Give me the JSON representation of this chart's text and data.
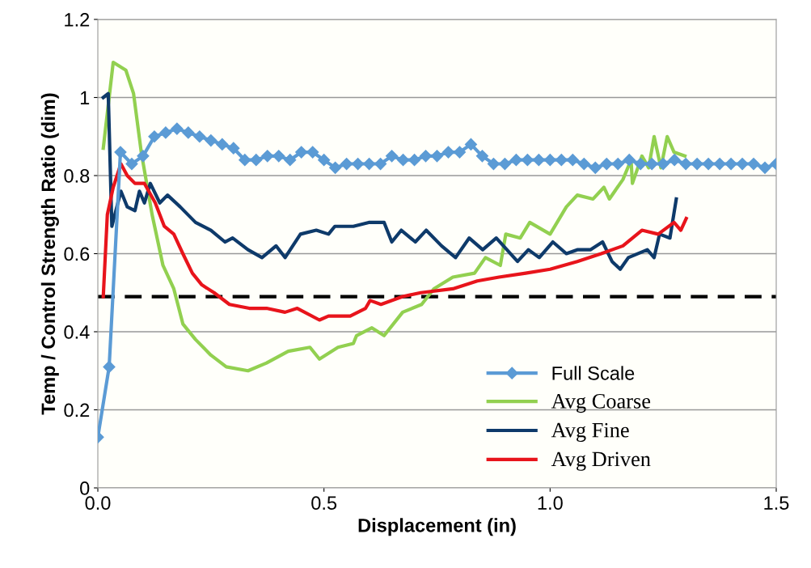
{
  "chart_data": {
    "type": "line",
    "xlabel": "Displacement (in)",
    "ylabel": "Temp / Control Strength Ratio (dim)",
    "xlim": [
      0,
      1.5
    ],
    "xticks": [
      {
        "value": 0,
        "label": "0.0"
      },
      {
        "value": 0.5,
        "label": "0.5"
      },
      {
        "value": 1,
        "label": "1.0"
      },
      {
        "value": 1.5,
        "label": "1.5"
      }
    ],
    "ylim": [
      0,
      1.2
    ],
    "yticks": [
      0,
      0.2,
      0.4,
      0.6,
      0.8,
      1,
      1.2
    ],
    "grid": "y",
    "legend": "bottom right",
    "ref_lines": [
      {
        "axis": "y",
        "value": 0.49,
        "color": "#000000",
        "line_style": "dashed"
      }
    ],
    "series": [
      {
        "name": "Full Scale",
        "color": "#5b9bd5",
        "marker": "diamond",
        "x": [
          0,
          0.025,
          0.05,
          0.075,
          0.1,
          0.125,
          0.15,
          0.175,
          0.2,
          0.225,
          0.25,
          0.275,
          0.3,
          0.325,
          0.35,
          0.375,
          0.4,
          0.425,
          0.45,
          0.475,
          0.5,
          0.525,
          0.55,
          0.575,
          0.6,
          0.625,
          0.65,
          0.675,
          0.7,
          0.725,
          0.75,
          0.775,
          0.8,
          0.825,
          0.85,
          0.875,
          0.9,
          0.925,
          0.95,
          0.975,
          1.0,
          1.025,
          1.05,
          1.075,
          1.1,
          1.125,
          1.15,
          1.175,
          1.2,
          1.225,
          1.25,
          1.275,
          1.3,
          1.325,
          1.35,
          1.375,
          1.4,
          1.425,
          1.45,
          1.475,
          1.5
        ],
        "values": [
          0.13,
          0.31,
          0.86,
          0.83,
          0.85,
          0.9,
          0.91,
          0.92,
          0.91,
          0.9,
          0.89,
          0.88,
          0.87,
          0.84,
          0.84,
          0.85,
          0.85,
          0.84,
          0.86,
          0.86,
          0.84,
          0.82,
          0.83,
          0.83,
          0.83,
          0.83,
          0.85,
          0.84,
          0.84,
          0.85,
          0.85,
          0.86,
          0.86,
          0.88,
          0.85,
          0.83,
          0.83,
          0.84,
          0.84,
          0.84,
          0.84,
          0.84,
          0.84,
          0.83,
          0.82,
          0.83,
          0.83,
          0.84,
          0.83,
          0.83,
          0.83,
          0.84,
          0.83,
          0.83,
          0.83,
          0.83,
          0.83,
          0.83,
          0.83,
          0.82,
          0.83
        ]
      },
      {
        "name": "Avg Coarse",
        "color": "#92d050",
        "marker": "none",
        "x": [
          0.012,
          0.034,
          0.062,
          0.079,
          0.096,
          0.12,
          0.144,
          0.168,
          0.188,
          0.216,
          0.25,
          0.284,
          0.332,
          0.373,
          0.421,
          0.469,
          0.49,
          0.531,
          0.565,
          0.572,
          0.606,
          0.633,
          0.674,
          0.716,
          0.743,
          0.785,
          0.833,
          0.857,
          0.89,
          0.902,
          0.934,
          0.955,
          1.0,
          1.036,
          1.06,
          1.095,
          1.119,
          1.131,
          1.161,
          1.179,
          1.182,
          1.203,
          1.218,
          1.23,
          1.245,
          1.259,
          1.274,
          1.298
        ],
        "values": [
          0.87,
          1.09,
          1.07,
          1.01,
          0.86,
          0.7,
          0.57,
          0.51,
          0.42,
          0.38,
          0.34,
          0.31,
          0.3,
          0.32,
          0.35,
          0.36,
          0.33,
          0.36,
          0.37,
          0.39,
          0.41,
          0.39,
          0.45,
          0.47,
          0.51,
          0.54,
          0.55,
          0.59,
          0.57,
          0.65,
          0.64,
          0.68,
          0.65,
          0.72,
          0.75,
          0.74,
          0.77,
          0.74,
          0.79,
          0.84,
          0.78,
          0.85,
          0.82,
          0.9,
          0.82,
          0.9,
          0.86,
          0.85
        ]
      },
      {
        "name": "Avg Fine",
        "color": "#0e3a6a",
        "marker": "none",
        "x": [
          0.012,
          0.023,
          0.031,
          0.051,
          0.065,
          0.082,
          0.092,
          0.103,
          0.116,
          0.137,
          0.154,
          0.182,
          0.216,
          0.25,
          0.281,
          0.298,
          0.332,
          0.363,
          0.394,
          0.414,
          0.448,
          0.483,
          0.51,
          0.524,
          0.565,
          0.599,
          0.633,
          0.65,
          0.671,
          0.702,
          0.726,
          0.76,
          0.791,
          0.821,
          0.851,
          0.881,
          0.928,
          0.952,
          0.976,
          1.006,
          1.036,
          1.06,
          1.089,
          1.116,
          1.137,
          1.155,
          1.173,
          1.215,
          1.23,
          1.242,
          1.265,
          1.279
        ],
        "values": [
          1.0,
          1.01,
          0.67,
          0.76,
          0.72,
          0.71,
          0.76,
          0.73,
          0.78,
          0.73,
          0.75,
          0.72,
          0.68,
          0.66,
          0.63,
          0.64,
          0.61,
          0.59,
          0.62,
          0.59,
          0.65,
          0.66,
          0.65,
          0.67,
          0.67,
          0.68,
          0.68,
          0.63,
          0.66,
          0.63,
          0.66,
          0.62,
          0.59,
          0.64,
          0.61,
          0.64,
          0.58,
          0.61,
          0.59,
          0.63,
          0.6,
          0.61,
          0.61,
          0.63,
          0.58,
          0.56,
          0.59,
          0.61,
          0.59,
          0.65,
          0.64,
          0.74
        ]
      },
      {
        "name": "Avg Driven",
        "color": "#e8141b",
        "marker": "none",
        "x": [
          0.012,
          0.021,
          0.034,
          0.051,
          0.065,
          0.082,
          0.103,
          0.127,
          0.147,
          0.168,
          0.188,
          0.209,
          0.23,
          0.257,
          0.291,
          0.335,
          0.373,
          0.414,
          0.441,
          0.49,
          0.51,
          0.558,
          0.592,
          0.602,
          0.626,
          0.674,
          0.714,
          0.785,
          0.839,
          0.887,
          0.946,
          1.0,
          1.06,
          1.113,
          1.161,
          1.203,
          1.239,
          1.274,
          1.289,
          1.301
        ],
        "values": [
          0.49,
          0.7,
          0.77,
          0.83,
          0.8,
          0.78,
          0.78,
          0.73,
          0.67,
          0.65,
          0.6,
          0.55,
          0.52,
          0.5,
          0.47,
          0.46,
          0.46,
          0.45,
          0.46,
          0.43,
          0.44,
          0.44,
          0.46,
          0.48,
          0.47,
          0.49,
          0.5,
          0.51,
          0.53,
          0.54,
          0.55,
          0.56,
          0.58,
          0.6,
          0.62,
          0.66,
          0.65,
          0.68,
          0.66,
          0.69
        ]
      }
    ]
  }
}
